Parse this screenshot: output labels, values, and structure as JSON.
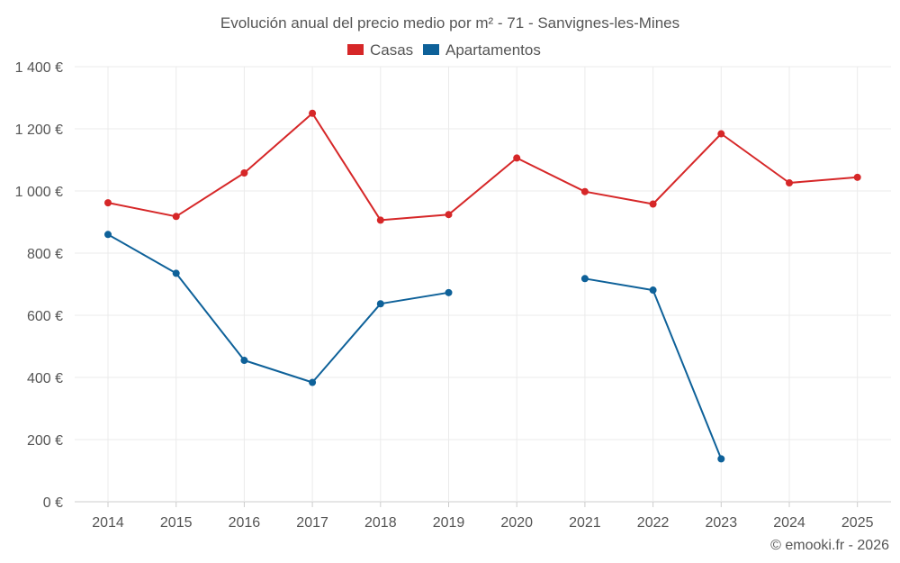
{
  "chart_data": {
    "type": "line",
    "title": "Evolución anual del precio medio por m² - 71 - Sanvignes-les-Mines",
    "x": [
      "2014",
      "2015",
      "2016",
      "2017",
      "2018",
      "2019",
      "2020",
      "2021",
      "2022",
      "2023",
      "2024",
      "2025"
    ],
    "series": [
      {
        "name": "Casas",
        "color": "#d62728",
        "values": [
          962,
          918,
          1058,
          1250,
          906,
          924,
          1106,
          998,
          958,
          1184,
          1026,
          1044
        ]
      },
      {
        "name": "Apartamentos",
        "color": "#0e6199",
        "values": [
          860,
          735,
          455,
          384,
          637,
          673,
          null,
          718,
          681,
          138,
          null,
          null
        ]
      }
    ],
    "ylim": [
      0,
      1400
    ],
    "yticks": [
      0,
      200,
      400,
      600,
      800,
      1000,
      1200,
      1400
    ],
    "ytick_labels": [
      "0 €",
      "200 €",
      "400 €",
      "600 €",
      "800 €",
      "1 000 €",
      "1 200 €",
      "1 400 €"
    ],
    "grid": true,
    "legend_position": "top-center",
    "xlabel": "",
    "ylabel": ""
  },
  "footer": {
    "copyright": "© emooki.fr - 2026"
  }
}
